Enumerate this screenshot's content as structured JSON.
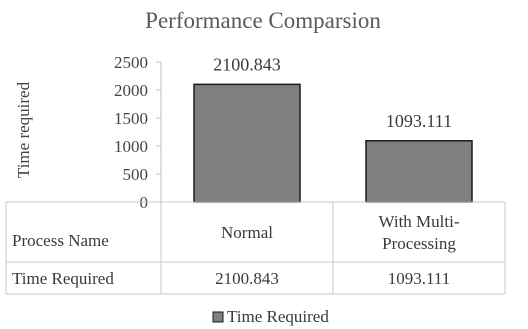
{
  "chart_data": {
    "type": "bar",
    "title": "Performance Comparsion",
    "ylabel": "Time required",
    "ylim": [
      0,
      2500
    ],
    "yticks": [
      0,
      500,
      1000,
      1500,
      2000,
      2500
    ],
    "categories": [
      "Normal",
      "With Multi-Processing"
    ],
    "category_lines": [
      [
        "Normal"
      ],
      [
        "With Multi-",
        "Processing"
      ]
    ],
    "series": [
      {
        "name": "Time Required",
        "values": [
          2100.843,
          1093.111
        ],
        "labels": [
          "2100.843",
          "1093.111"
        ]
      }
    ],
    "table": {
      "header_label": "Process Name",
      "row_label": "Time Required",
      "row_values": [
        "2100.843",
        "1093.111"
      ]
    },
    "legend": {
      "position": "bottom",
      "entries": [
        "Time Required"
      ]
    },
    "grid": false,
    "bar_color": "#7f7f7f",
    "bar_border_color": "#1a1a1a"
  }
}
